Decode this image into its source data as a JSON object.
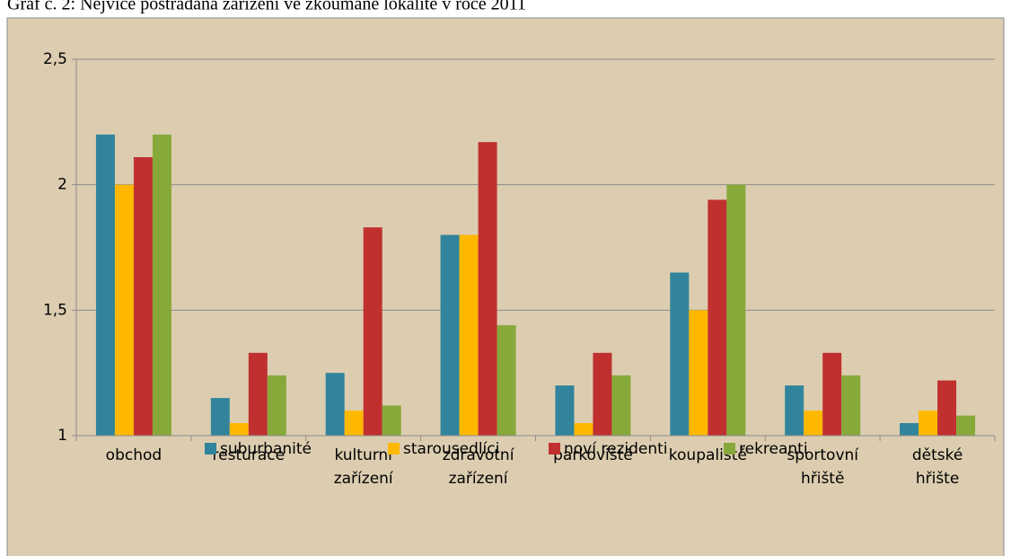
{
  "chart_data": {
    "type": "bar",
    "title": "Graf č. 2: Nejvíce postrádaná zařízení ve zkoumané lokalitě v roce 2011",
    "categories": [
      "obchod",
      "resturace",
      "kulturní zařízení",
      "zdravotní zařízení",
      "parkoviště",
      "koupaliště",
      "sportovní hřiště",
      "dětské hřište"
    ],
    "series": [
      {
        "name": "suburbanité",
        "color": "#31849b",
        "values": [
          2.2,
          1.15,
          1.25,
          1.8,
          1.2,
          1.65,
          1.2,
          1.05
        ]
      },
      {
        "name": "starousedlíci",
        "color": "#ffb800",
        "values": [
          2.0,
          1.05,
          1.1,
          1.8,
          1.05,
          1.5,
          1.1,
          1.1
        ]
      },
      {
        "name": "noví rezidenti",
        "color": "#c0302f",
        "values": [
          2.11,
          1.33,
          1.83,
          2.17,
          1.33,
          1.94,
          1.33,
          1.22
        ]
      },
      {
        "name": "rekreanti",
        "color": "#86a93a",
        "values": [
          2.2,
          1.24,
          1.12,
          1.44,
          1.24,
          2.0,
          1.24,
          1.08
        ]
      }
    ],
    "ylim": [
      1,
      2.5
    ],
    "yticks": [
      1,
      {
        "value": 1.5,
        "label": "1,5"
      },
      2,
      {
        "value": 2.5,
        "label": "2,5"
      }
    ],
    "grid": true,
    "legend": "bottom"
  }
}
